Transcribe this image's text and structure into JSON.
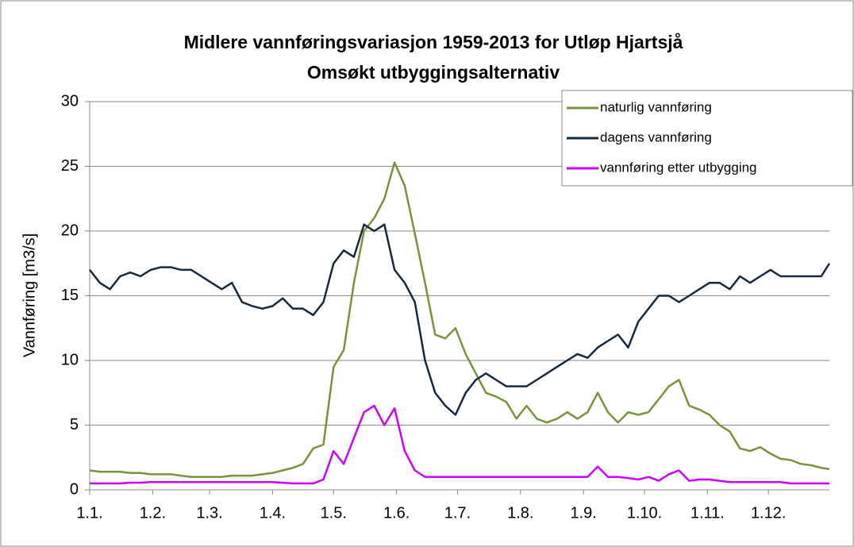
{
  "chart_data": {
    "type": "line",
    "title": "Midlere vannføringsvariasjon 1959-2013  for Utløp Hjartsjå",
    "subtitle": "Omsøkt utbyggingsalternativ",
    "ylabel": "Vannføring [m3/s]",
    "x": [
      1,
      6,
      11,
      16,
      21,
      26,
      31,
      36,
      41,
      46,
      51,
      56,
      61,
      66,
      71,
      76,
      81,
      86,
      91,
      96,
      101,
      106,
      111,
      116,
      121,
      126,
      131,
      136,
      141,
      146,
      151,
      156,
      161,
      166,
      171,
      176,
      181,
      186,
      191,
      196,
      201,
      206,
      211,
      216,
      221,
      226,
      231,
      236,
      241,
      246,
      251,
      256,
      261,
      266,
      271,
      276,
      281,
      286,
      291,
      296,
      301,
      306,
      311,
      316,
      321,
      326,
      331,
      336,
      341,
      346,
      351,
      356,
      361,
      365
    ],
    "xlim": [
      1,
      365
    ],
    "xticks": [
      {
        "value": 1,
        "label": "1.1."
      },
      {
        "value": 32,
        "label": "1.2."
      },
      {
        "value": 60,
        "label": "1.3."
      },
      {
        "value": 91,
        "label": "1.4."
      },
      {
        "value": 121,
        "label": "1.5."
      },
      {
        "value": 152,
        "label": "1.6."
      },
      {
        "value": 182,
        "label": "1.7."
      },
      {
        "value": 213,
        "label": "1.8."
      },
      {
        "value": 244,
        "label": "1.9."
      },
      {
        "value": 274,
        "label": "1.10."
      },
      {
        "value": 305,
        "label": "1.11."
      },
      {
        "value": 335,
        "label": "1.12."
      }
    ],
    "ylim": [
      0,
      30
    ],
    "yticks": [
      0,
      5,
      10,
      15,
      20,
      25,
      30
    ],
    "grid": true,
    "legend": "top-right",
    "series": [
      {
        "name": "naturlig vannføring",
        "color": "#77933c",
        "values": [
          1.5,
          1.4,
          1.4,
          1.4,
          1.3,
          1.3,
          1.2,
          1.2,
          1.2,
          1.1,
          1.0,
          1.0,
          1.0,
          1.0,
          1.1,
          1.1,
          1.1,
          1.2,
          1.3,
          1.5,
          1.7,
          2.0,
          3.2,
          3.5,
          9.5,
          10.8,
          16,
          20,
          21,
          22.5,
          25.3,
          23.5,
          19.8,
          16,
          12,
          11.7,
          12.5,
          10.5,
          9,
          7.5,
          7.2,
          6.8,
          5.5,
          6.5,
          5.5,
          5.2,
          5.5,
          6,
          5.5,
          6,
          7.5,
          6,
          5.2,
          6,
          5.8,
          6,
          7,
          8,
          8.5,
          6.5,
          6.2,
          5.8,
          5,
          4.5,
          3.2,
          3,
          3.3,
          2.8,
          2.4,
          2.3,
          2.0,
          1.9,
          1.7,
          1.6
        ]
      },
      {
        "name": "dagens vannføring",
        "color": "#17293f",
        "values": [
          17,
          16,
          15.5,
          16.5,
          16.8,
          16.5,
          17,
          17.2,
          17.2,
          17,
          17,
          16.5,
          16,
          15.5,
          16,
          14.5,
          14.2,
          14,
          14.2,
          14.8,
          14,
          14,
          13.5,
          14.5,
          17.5,
          18.5,
          18,
          20.5,
          20,
          20.5,
          17,
          16,
          14.5,
          10,
          7.5,
          6.5,
          5.8,
          7.5,
          8.5,
          9,
          8.5,
          8,
          8,
          8,
          8.5,
          9,
          9.5,
          10,
          10.5,
          10.2,
          11,
          11.5,
          12,
          11,
          13,
          14,
          15,
          15,
          14.5,
          15,
          15.5,
          16,
          16,
          15.5,
          16.5,
          16,
          16.5,
          17,
          16.5,
          16.5,
          16.5,
          16.5,
          16.5,
          17.5
        ]
      },
      {
        "name": "vannføring etter utbygging",
        "color": "#cc00ff",
        "values": [
          0.5,
          0.5,
          0.5,
          0.5,
          0.55,
          0.55,
          0.6,
          0.6,
          0.6,
          0.6,
          0.6,
          0.6,
          0.6,
          0.6,
          0.6,
          0.6,
          0.6,
          0.6,
          0.6,
          0.55,
          0.5,
          0.5,
          0.5,
          0.8,
          3,
          2,
          4,
          6,
          6.5,
          5,
          6.3,
          3,
          1.5,
          1.0,
          1.0,
          1.0,
          1.0,
          1.0,
          1.0,
          1.0,
          1.0,
          1.0,
          1.0,
          1.0,
          1.0,
          1.0,
          1.0,
          1.0,
          1.0,
          1.0,
          1.8,
          1.0,
          1.0,
          0.9,
          0.8,
          1.0,
          0.7,
          1.2,
          1.5,
          0.7,
          0.8,
          0.8,
          0.7,
          0.6,
          0.6,
          0.6,
          0.6,
          0.6,
          0.6,
          0.5,
          0.5,
          0.5,
          0.5,
          0.5
        ]
      }
    ]
  }
}
